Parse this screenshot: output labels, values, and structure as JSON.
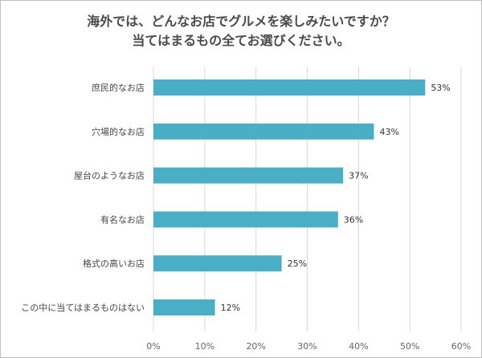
{
  "title": {
    "line1": "海外では、どんなお店でグルメを楽しみたいですか？",
    "line2": "当てはまるもの全てお選びください。"
  },
  "chart_data": {
    "type": "bar",
    "orientation": "horizontal",
    "categories": [
      "庶民的なお店",
      "穴場的なお店",
      "屋台のようなお店",
      "有名なお店",
      "格式の高いお店",
      "この中に当てはまるものはない"
    ],
    "values": [
      53,
      43,
      37,
      36,
      25,
      12
    ],
    "value_labels": [
      "53%",
      "43%",
      "37%",
      "36%",
      "25%",
      "12%"
    ],
    "xlim": [
      0,
      60
    ],
    "xticks": [
      0,
      10,
      20,
      30,
      40,
      50,
      60
    ],
    "xtick_labels": [
      "0%",
      "10%",
      "20%",
      "30%",
      "40%",
      "50%",
      "60%"
    ],
    "grid": true,
    "bar_color": "#4aaec6",
    "grid_color": "#d9d9d9"
  }
}
